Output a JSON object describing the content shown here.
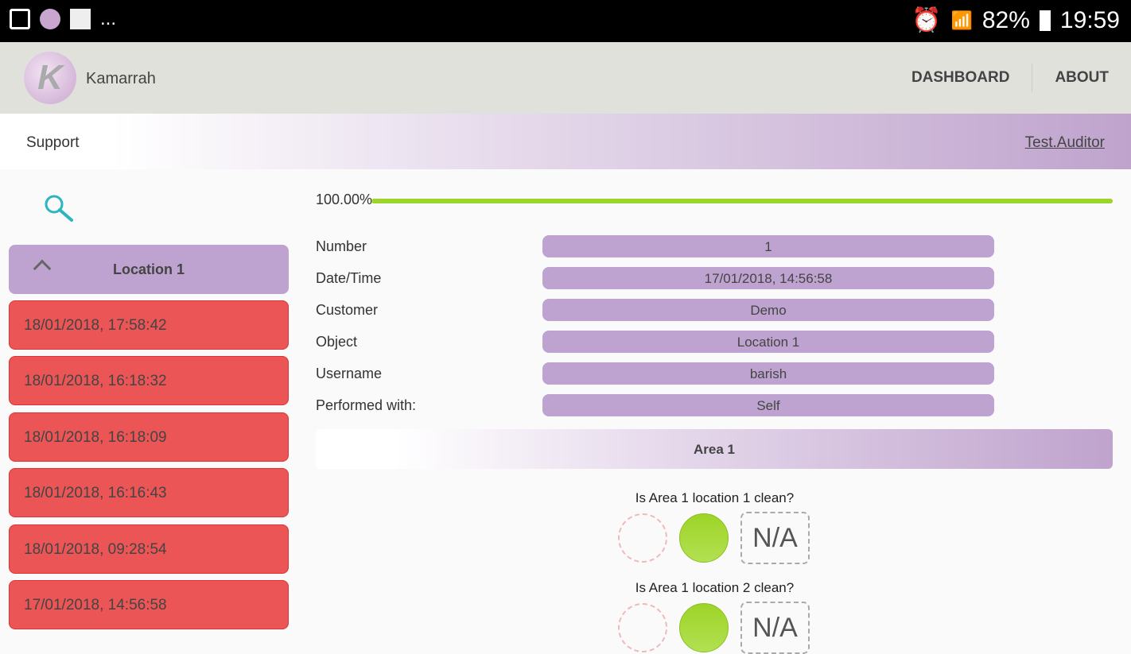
{
  "status_bar": {
    "battery": "82%",
    "time": "19:59",
    "more": "..."
  },
  "app": {
    "name": "Kamarrah",
    "logo_letter": "K",
    "nav": [
      "DASHBOARD",
      "ABOUT"
    ]
  },
  "subheader": {
    "title": "Support",
    "user": "Test.Auditor"
  },
  "sidebar": {
    "group": "Location 1",
    "items": [
      "18/01/2018, 17:58:42",
      "18/01/2018, 16:18:32",
      "18/01/2018, 16:18:09",
      "18/01/2018, 16:16:43",
      "18/01/2018, 09:28:54",
      "17/01/2018, 14:56:58"
    ],
    "item_color": "#eb5555"
  },
  "progress": {
    "label": "100.00%",
    "value": 100
  },
  "details": [
    {
      "label": "Number",
      "value": "1"
    },
    {
      "label": "Date/Time",
      "value": "17/01/2018, 14:56:58"
    },
    {
      "label": "Customer",
      "value": "Demo"
    },
    {
      "label": "Object",
      "value": "Location 1"
    },
    {
      "label": "Username",
      "value": "barish"
    },
    {
      "label": "Performed with:",
      "value": "Self"
    }
  ],
  "area": {
    "title": "Area 1",
    "questions": [
      {
        "text": "Is Area 1 location 1 clean?",
        "selected": "yes"
      },
      {
        "text": "Is Area 1 location 2 clean?",
        "selected": "yes"
      }
    ],
    "na_label": "N/A"
  }
}
